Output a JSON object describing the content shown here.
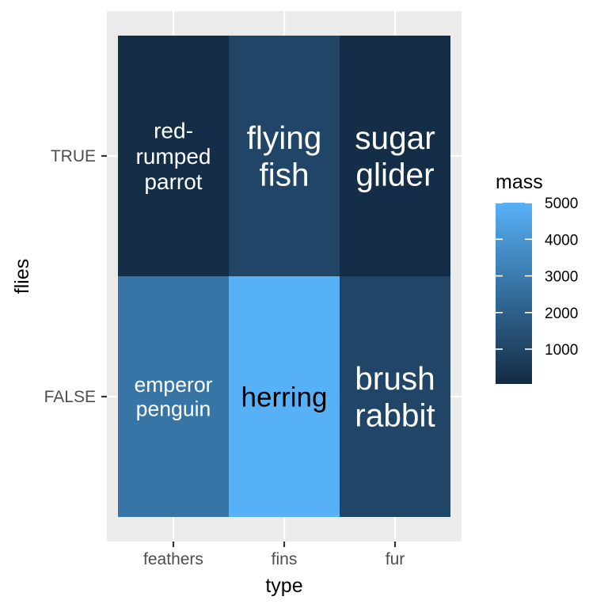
{
  "chart_data": {
    "type": "heatmap",
    "x_categories": [
      "feathers",
      "fins",
      "fur"
    ],
    "y_categories": [
      "TRUE",
      "FALSE"
    ],
    "xlabel": "type",
    "ylabel": "flies",
    "fill_label": "mass",
    "fill_range": [
      50,
      5000
    ],
    "fill_low_color": "#132b43",
    "fill_high_color": "#56b1f7",
    "legend_breaks": [
      1000,
      2000,
      3000,
      4000,
      5000
    ],
    "legend_position": "right",
    "grid": true,
    "cells": [
      {
        "x": "feathers",
        "y": "TRUE",
        "label": "red-\nrumped\nparrot",
        "mass": 150,
        "label_color": "#ffffff",
        "text_scale": 1.0
      },
      {
        "x": "fins",
        "y": "TRUE",
        "label": "flying\nfish",
        "mass": 1000,
        "label_color": "#ffffff",
        "text_scale": 1.45
      },
      {
        "x": "fur",
        "y": "TRUE",
        "label": "sugar\nglider",
        "mass": 150,
        "label_color": "#ffffff",
        "text_scale": 1.45
      },
      {
        "x": "feathers",
        "y": "FALSE",
        "label": "emperor\npenguin",
        "mass": 2800,
        "label_color": "#ffffff",
        "text_scale": 0.95
      },
      {
        "x": "fins",
        "y": "FALSE",
        "label": "herring",
        "mass": 5000,
        "label_color": "#000000",
        "text_scale": 1.25
      },
      {
        "x": "fur",
        "y": "FALSE",
        "label": "brush\nrabbit",
        "mass": 1000,
        "label_color": "#ffffff",
        "text_scale": 1.45
      }
    ]
  }
}
